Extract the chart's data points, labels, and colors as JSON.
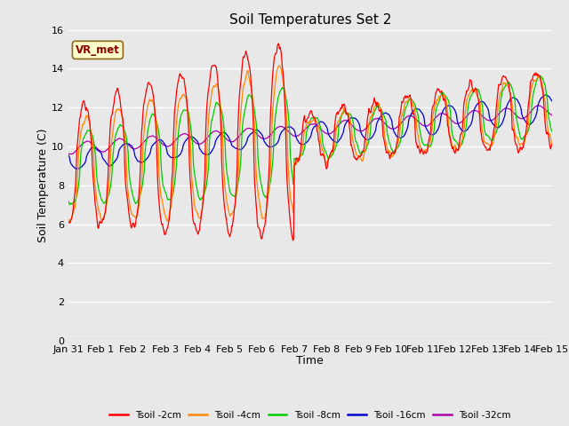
{
  "title": "Soil Temperatures Set 2",
  "xlabel": "Time",
  "ylabel": "Soil Temperature (C)",
  "ylim": [
    0,
    16
  ],
  "yticks": [
    0,
    2,
    4,
    6,
    8,
    10,
    12,
    14,
    16
  ],
  "x_labels": [
    "Jan 31",
    "Feb 1",
    "Feb 2",
    "Feb 3",
    "Feb 4",
    "Feb 5",
    "Feb 6",
    "Feb 7",
    "Feb 8",
    "Feb 9",
    "Feb 10",
    "Feb 11",
    "Feb 12",
    "Feb 13",
    "Feb 14",
    "Feb 15"
  ],
  "series_colors": [
    "#ff0000",
    "#ff8800",
    "#00cc00",
    "#0000cc",
    "#aa00aa"
  ],
  "series_labels": [
    "Tsoil -2cm",
    "Tsoil -4cm",
    "Tsoil -8cm",
    "Tsoil -16cm",
    "Tsoil -32cm"
  ],
  "legend_label": "VR_met",
  "background_color": "#e8e8e8",
  "grid_color": "#ffffff",
  "n_points": 720
}
